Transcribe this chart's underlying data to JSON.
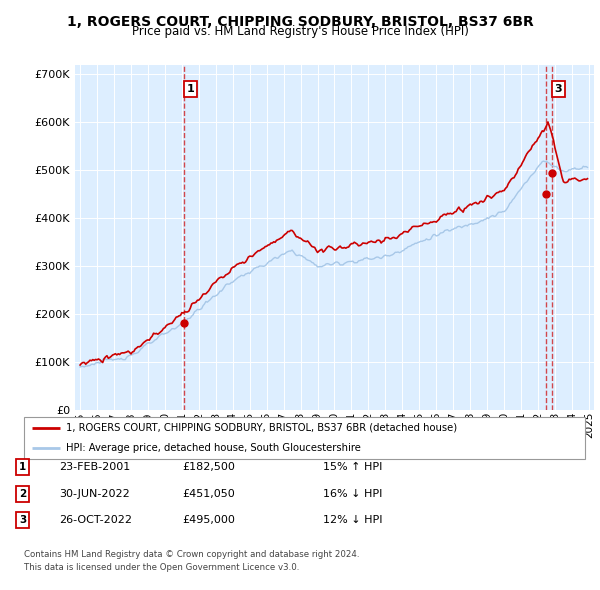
{
  "title": "1, ROGERS COURT, CHIPPING SODBURY, BRISTOL, BS37 6BR",
  "subtitle": "Price paid vs. HM Land Registry's House Price Index (HPI)",
  "legend_line1": "1, ROGERS COURT, CHIPPING SODBURY, BRISTOL, BS37 6BR (detached house)",
  "legend_line2": "HPI: Average price, detached house, South Gloucestershire",
  "footer1": "Contains HM Land Registry data © Crown copyright and database right 2024.",
  "footer2": "This data is licensed under the Open Government Licence v3.0.",
  "transactions": [
    {
      "num": 1,
      "date": "23-FEB-2001",
      "price": 182500,
      "pct": "15%",
      "dir": "↑",
      "year_x": 2001.13
    },
    {
      "num": 2,
      "date": "30-JUN-2022",
      "price": 451050,
      "pct": "16%",
      "dir": "↓",
      "year_x": 2022.49
    },
    {
      "num": 3,
      "date": "26-OCT-2022",
      "price": 495000,
      "pct": "12%",
      "dir": "↓",
      "year_x": 2022.81
    }
  ],
  "hpi_color": "#a8c8e8",
  "price_color": "#cc0000",
  "vline_color": "#cc0000",
  "bg_color": "#ddeeff",
  "plot_bg": "#ffffff",
  "ylim": [
    0,
    720000
  ],
  "yticks": [
    0,
    100000,
    200000,
    300000,
    400000,
    500000,
    600000,
    700000
  ],
  "xlim_start": 1994.7,
  "xlim_end": 2025.3
}
